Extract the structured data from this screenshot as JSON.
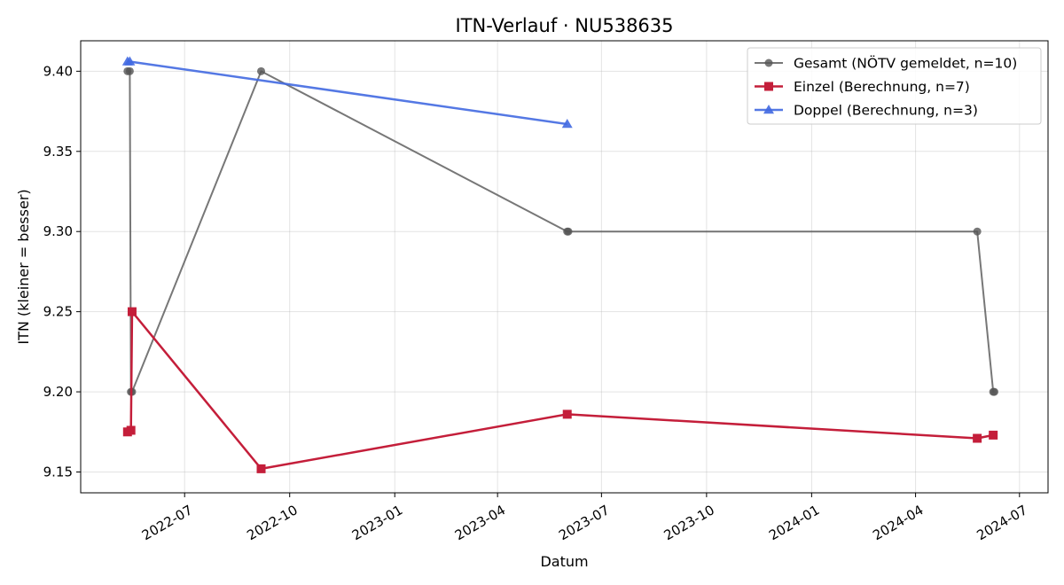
{
  "chart_data": {
    "type": "line",
    "title": "ITN-Verlauf · NU538635",
    "xlabel": "Datum",
    "ylabel": "ITN  (kleiner = besser)",
    "x_type": "date",
    "xlim": [
      "2022-04-01",
      "2024-07-26"
    ],
    "ylim": [
      9.137,
      9.419
    ],
    "x_ticks": [
      "2022-07-01",
      "2022-10-01",
      "2023-01-01",
      "2023-04-01",
      "2023-07-01",
      "2023-10-01",
      "2024-01-01",
      "2024-04-01",
      "2024-07-01"
    ],
    "x_tick_labels": [
      "2022-07",
      "2022-10",
      "2023-01",
      "2023-04",
      "2023-07",
      "2023-10",
      "2024-01",
      "2024-04",
      "2024-07"
    ],
    "y_ticks": [
      9.15,
      9.2,
      9.25,
      9.3,
      9.35,
      9.4
    ],
    "y_tick_labels": [
      "9.15",
      "9.20",
      "9.25",
      "9.30",
      "9.35",
      "9.40"
    ],
    "grid": true,
    "legend_position": "top-right",
    "series": [
      {
        "name": "Gesamt (NÖTV gemeldet, n=10)",
        "color": "#555555",
        "marker": "circle",
        "points": [
          {
            "x": "2022-05-12",
            "y": 9.4
          },
          {
            "x": "2022-05-14",
            "y": 9.4
          },
          {
            "x": "2022-05-15",
            "y": 9.2
          },
          {
            "x": "2022-05-16",
            "y": 9.2
          },
          {
            "x": "2022-09-06",
            "y": 9.4
          },
          {
            "x": "2023-06-01",
            "y": 9.3
          },
          {
            "x": "2023-06-02",
            "y": 9.3
          },
          {
            "x": "2024-05-25",
            "y": 9.3
          },
          {
            "x": "2024-06-08",
            "y": 9.2
          },
          {
            "x": "2024-06-09",
            "y": 9.2
          }
        ]
      },
      {
        "name": "Einzel (Berechnung, n=7)",
        "color": "#c41e3a",
        "marker": "square",
        "points": [
          {
            "x": "2022-05-12",
            "y": 9.175
          },
          {
            "x": "2022-05-15",
            "y": 9.176
          },
          {
            "x": "2022-05-16",
            "y": 9.25
          },
          {
            "x": "2022-09-06",
            "y": 9.152
          },
          {
            "x": "2023-06-01",
            "y": 9.186
          },
          {
            "x": "2024-05-25",
            "y": 9.171
          },
          {
            "x": "2024-06-08",
            "y": 9.173
          }
        ]
      },
      {
        "name": "Doppel (Berechnung, n=3)",
        "color": "#4169e1",
        "marker": "triangle",
        "points": [
          {
            "x": "2022-05-12",
            "y": 9.406
          },
          {
            "x": "2022-05-14",
            "y": 9.406
          },
          {
            "x": "2023-06-01",
            "y": 9.367
          }
        ]
      }
    ]
  }
}
